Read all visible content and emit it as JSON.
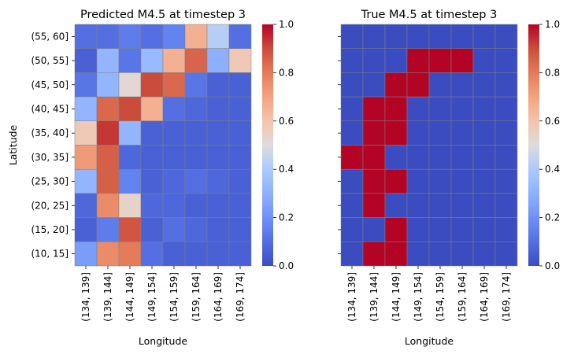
{
  "figure": {
    "background": "#ffffff",
    "colormap": "coolwarm"
  },
  "chart_data": [
    {
      "type": "heatmap",
      "title": "Predicted M4.5 at timestep 3",
      "xlabel": "Longitude",
      "ylabel": "Latitude",
      "x_categories": [
        "(134, 139]",
        "(139, 144]",
        "(144, 149]",
        "(149, 154]",
        "(154, 159]",
        "(159, 164]",
        "(164, 169]",
        "(169, 174]"
      ],
      "y_categories": [
        "(55, 60]",
        "(50, 55]",
        "(45, 50]",
        "(40, 45]",
        "(35, 40]",
        "(30, 35]",
        "(25, 30]",
        "(20, 25]",
        "(15, 20]",
        "(10, 15]"
      ],
      "values": [
        [
          0.1,
          0.1,
          0.14,
          0.1,
          0.16,
          0.66,
          0.42,
          0.1
        ],
        [
          0.06,
          0.32,
          0.12,
          0.34,
          0.66,
          0.85,
          0.3,
          0.58
        ],
        [
          0.12,
          0.32,
          0.52,
          0.9,
          0.84,
          0.12,
          0.06,
          0.06
        ],
        [
          0.32,
          0.84,
          0.9,
          0.66,
          0.1,
          0.08,
          0.06,
          0.06
        ],
        [
          0.58,
          0.93,
          0.32,
          0.06,
          0.06,
          0.06,
          0.06,
          0.06
        ],
        [
          0.72,
          0.86,
          0.08,
          0.06,
          0.06,
          0.06,
          0.06,
          0.06
        ],
        [
          0.32,
          0.86,
          0.16,
          0.06,
          0.08,
          0.1,
          0.08,
          0.06
        ],
        [
          0.08,
          0.76,
          0.54,
          0.08,
          0.08,
          0.06,
          0.06,
          0.06
        ],
        [
          0.06,
          0.14,
          0.88,
          0.06,
          0.1,
          0.08,
          0.06,
          0.06
        ],
        [
          0.24,
          0.76,
          0.8,
          0.1,
          0.06,
          0.06,
          0.06,
          0.06
        ]
      ],
      "vmin": 0.0,
      "vmax": 1.0,
      "show_y_ticklabels": true,
      "colorbar": {
        "ticks": [
          "0.0",
          "0.2",
          "0.4",
          "0.6",
          "0.8",
          "1.0"
        ]
      }
    },
    {
      "type": "heatmap",
      "title": "True M4.5 at timestep 3",
      "xlabel": "Longitude",
      "ylabel": "",
      "x_categories": [
        "(134, 139]",
        "(139, 144]",
        "(144, 149]",
        "(149, 154]",
        "(154, 159]",
        "(159, 164]",
        "(164, 169]",
        "(169, 174]"
      ],
      "y_categories": [
        "(55, 60]",
        "(50, 55]",
        "(45, 50]",
        "(40, 45]",
        "(35, 40]",
        "(30, 35]",
        "(25, 30]",
        "(20, 25]",
        "(15, 20]",
        "(10, 15]"
      ],
      "values": [
        [
          0,
          0,
          0,
          0,
          0,
          0,
          0,
          0
        ],
        [
          0,
          0,
          0,
          1,
          1,
          1,
          0,
          0
        ],
        [
          0,
          0,
          1,
          1,
          0,
          0,
          0,
          0
        ],
        [
          0,
          1,
          1,
          0,
          0,
          0,
          0,
          0
        ],
        [
          0,
          1,
          1,
          0,
          0,
          0,
          0,
          0
        ],
        [
          1,
          1,
          0,
          0,
          0,
          0,
          0,
          0
        ],
        [
          0,
          1,
          1,
          0,
          0,
          0,
          0,
          0
        ],
        [
          0,
          1,
          0,
          0,
          0,
          0,
          0,
          0
        ],
        [
          0,
          0,
          1,
          0,
          0,
          0,
          0,
          0
        ],
        [
          0,
          1,
          1,
          0,
          0,
          0,
          0,
          0
        ]
      ],
      "vmin": 0.0,
      "vmax": 1.0,
      "show_y_ticklabels": false,
      "colorbar": {
        "ticks": [
          "0.0",
          "0.2",
          "0.4",
          "0.6",
          "0.8",
          "1.0"
        ]
      }
    }
  ]
}
